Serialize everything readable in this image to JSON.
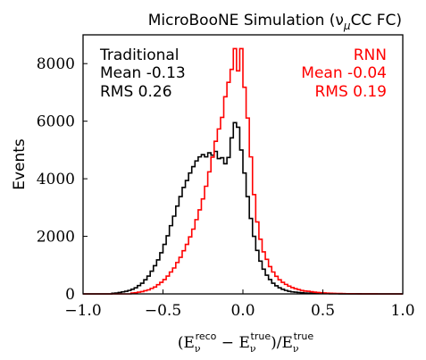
{
  "chart_data": {
    "type": "step-histogram",
    "title": "MicroBooNE Simulation (ν_μCC FC)",
    "title_parts": {
      "main": "MicroBooNE Simulation (ν",
      "sub": "μ",
      "tail": "CC FC)"
    },
    "xlabel": "(E_ν^reco − E_ν^true)/E_ν^true",
    "ylabel": "Events",
    "xlim": [
      -1.0,
      1.0
    ],
    "ylim": [
      0,
      9000
    ],
    "xticks": [
      -1.0,
      -0.5,
      0.0,
      0.5,
      1.0
    ],
    "xtick_labels": [
      "−1.0",
      "−0.5",
      "0.0",
      "0.5",
      "1.0"
    ],
    "yticks": [
      0,
      2000,
      4000,
      6000,
      8000
    ],
    "ytick_labels": [
      "0",
      "2000",
      "4000",
      "6000",
      "8000"
    ],
    "bin_width": 0.02,
    "series": [
      {
        "name": "Traditional",
        "color": "#000000",
        "stats": [
          "Traditional",
          "Mean -0.13",
          "RMS 0.26"
        ],
        "bin_centers": [
          -0.99,
          -0.97,
          -0.95,
          -0.93,
          -0.91,
          -0.89,
          -0.87,
          -0.85,
          -0.83,
          -0.81,
          -0.79,
          -0.77,
          -0.75,
          -0.73,
          -0.71,
          -0.69,
          -0.67,
          -0.65,
          -0.63,
          -0.61,
          -0.59,
          -0.57,
          -0.55,
          -0.53,
          -0.51,
          -0.49,
          -0.47,
          -0.45,
          -0.43,
          -0.41,
          -0.39,
          -0.37,
          -0.35,
          -0.33,
          -0.31,
          -0.29,
          -0.27,
          -0.25,
          -0.23,
          -0.21,
          -0.19,
          -0.17,
          -0.15,
          -0.13,
          -0.11,
          -0.09,
          -0.07,
          -0.05,
          -0.03,
          -0.01,
          0.01,
          0.03,
          0.05,
          0.07,
          0.09,
          0.11,
          0.13,
          0.15,
          0.17,
          0.19,
          0.21,
          0.23,
          0.25,
          0.27,
          0.29,
          0.31,
          0.33,
          0.35,
          0.37,
          0.39,
          0.41,
          0.43,
          0.45,
          0.47,
          0.49,
          0.51,
          0.53,
          0.55,
          0.57,
          0.59,
          0.61,
          0.63,
          0.65,
          0.67,
          0.69,
          0.71,
          0.73,
          0.75,
          0.77,
          0.79,
          0.81,
          0.83,
          0.85,
          0.87,
          0.89,
          0.91,
          0.93,
          0.95,
          0.97,
          0.99
        ],
        "counts": [
          0,
          0,
          0,
          0,
          0,
          0,
          0,
          0,
          0,
          20,
          30,
          50,
          70,
          90,
          120,
          160,
          210,
          290,
          370,
          490,
          620,
          790,
          980,
          1180,
          1430,
          1720,
          2020,
          2370,
          2700,
          3050,
          3380,
          3700,
          3940,
          4200,
          4420,
          4620,
          4760,
          4840,
          4760,
          4900,
          4820,
          4950,
          4700,
          4730,
          4520,
          4740,
          5420,
          5950,
          5790,
          5000,
          4200,
          3380,
          2620,
          2000,
          1510,
          1140,
          860,
          650,
          500,
          370,
          280,
          210,
          160,
          120,
          90,
          70,
          60,
          50,
          40,
          30,
          25,
          20,
          18,
          15,
          12,
          10,
          8,
          6,
          5,
          4,
          3,
          3,
          2,
          2,
          1,
          1,
          1,
          0,
          0,
          0,
          0,
          0,
          0,
          0,
          0,
          0,
          0,
          0,
          0,
          0
        ]
      },
      {
        "name": "RNN",
        "color": "#ff0000",
        "stats": [
          "RNN",
          "Mean -0.04",
          "RMS 0.19"
        ],
        "bin_centers": [
          -0.99,
          -0.97,
          -0.95,
          -0.93,
          -0.91,
          -0.89,
          -0.87,
          -0.85,
          -0.83,
          -0.81,
          -0.79,
          -0.77,
          -0.75,
          -0.73,
          -0.71,
          -0.69,
          -0.67,
          -0.65,
          -0.63,
          -0.61,
          -0.59,
          -0.57,
          -0.55,
          -0.53,
          -0.51,
          -0.49,
          -0.47,
          -0.45,
          -0.43,
          -0.41,
          -0.39,
          -0.37,
          -0.35,
          -0.33,
          -0.31,
          -0.29,
          -0.27,
          -0.25,
          -0.23,
          -0.21,
          -0.19,
          -0.17,
          -0.15,
          -0.13,
          -0.11,
          -0.09,
          -0.07,
          -0.05,
          -0.03,
          -0.01,
          0.01,
          0.03,
          0.05,
          0.07,
          0.09,
          0.11,
          0.13,
          0.15,
          0.17,
          0.19,
          0.21,
          0.23,
          0.25,
          0.27,
          0.29,
          0.31,
          0.33,
          0.35,
          0.37,
          0.39,
          0.41,
          0.43,
          0.45,
          0.47,
          0.49,
          0.51,
          0.53,
          0.55,
          0.57,
          0.59,
          0.61,
          0.63,
          0.65,
          0.67,
          0.69,
          0.71,
          0.73,
          0.75,
          0.77,
          0.79,
          0.81,
          0.83,
          0.85,
          0.87,
          0.89,
          0.91,
          0.93,
          0.95,
          0.97,
          0.99
        ],
        "counts": [
          0,
          0,
          0,
          0,
          0,
          0,
          0,
          0,
          0,
          0,
          0,
          0,
          0,
          0,
          0,
          30,
          40,
          60,
          80,
          110,
          140,
          190,
          240,
          320,
          400,
          500,
          620,
          760,
          900,
          1090,
          1270,
          1500,
          1720,
          1980,
          2250,
          2580,
          2920,
          3300,
          3740,
          4240,
          4750,
          5300,
          5730,
          6130,
          6850,
          7350,
          7800,
          8520,
          7750,
          8520,
          7180,
          6110,
          4760,
          3450,
          2500,
          1900,
          1460,
          1200,
          950,
          760,
          610,
          490,
          400,
          330,
          270,
          220,
          180,
          150,
          120,
          100,
          90,
          75,
          60,
          50,
          40,
          33,
          27,
          22,
          18,
          15,
          12,
          10,
          8,
          6,
          5,
          4,
          3,
          2,
          2,
          1,
          1,
          1,
          0,
          0,
          0,
          0,
          0,
          0,
          0,
          0
        ]
      }
    ]
  }
}
